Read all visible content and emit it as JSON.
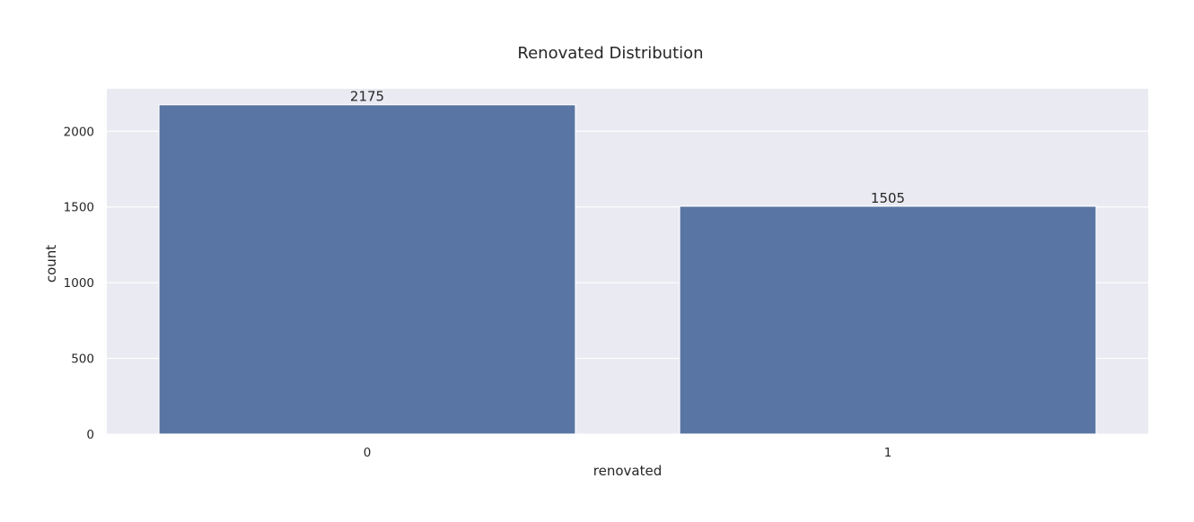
{
  "chart_data": {
    "type": "bar",
    "title": "Renovated Distribution",
    "xlabel": "renovated",
    "ylabel": "count",
    "categories": [
      "0",
      "1"
    ],
    "values": [
      2175,
      1505
    ],
    "data_labels": [
      "2175",
      "1505"
    ],
    "ylim": [
      0,
      2280
    ],
    "yticks": [
      0,
      500,
      1000,
      1500,
      2000
    ],
    "ytick_labels": [
      "0",
      "500",
      "1000",
      "1500",
      "2000"
    ],
    "grid": true,
    "legend": "none",
    "colors": {
      "bar": "#5975a4",
      "plot_background": "#eaeaf2",
      "grid": "#ffffff",
      "text": "#262626"
    }
  }
}
